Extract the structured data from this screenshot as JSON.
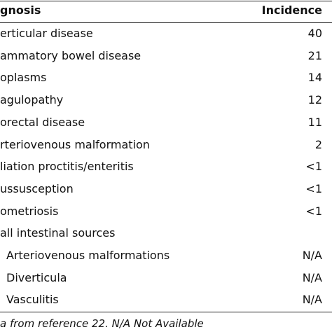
{
  "header": {
    "diagnosis": "gnosis",
    "incidence": "Incidence"
  },
  "rows": [
    {
      "diagnosis": "erticular disease",
      "incidence": "40"
    },
    {
      "diagnosis": "ammatory bowel disease",
      "incidence": "21"
    },
    {
      "diagnosis": "oplasms",
      "incidence": "14"
    },
    {
      "diagnosis": "agulopathy",
      "incidence": "12"
    },
    {
      "diagnosis": "orectal disease",
      "incidence": "11"
    },
    {
      "diagnosis": "rteriovenous malformation",
      "incidence": "2"
    },
    {
      "diagnosis": "liation proctitis/enteritis",
      "incidence": "<1"
    },
    {
      "diagnosis": "ussusception",
      "incidence": "<1"
    },
    {
      "diagnosis": "ometriosis",
      "incidence": "<1"
    }
  ],
  "group": {
    "label": "all intestinal sources",
    "rows": [
      {
        "diagnosis": "Arteriovenous malformations",
        "incidence": "N/A"
      },
      {
        "diagnosis": "Diverticula",
        "incidence": "N/A"
      },
      {
        "diagnosis": "Vasculitis",
        "incidence": "N/A"
      }
    ]
  },
  "footnote": "a from reference 22. N/A Not Available"
}
